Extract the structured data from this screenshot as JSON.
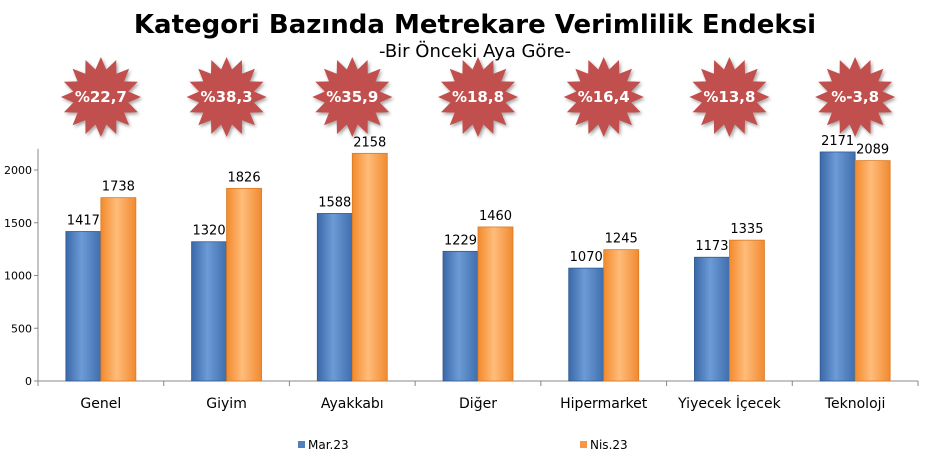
{
  "chart_data": {
    "type": "bar",
    "title": "Kategori Bazında Metrekare Verimlilik Endeksi",
    "subtitle": "-Bir Önceki Aya Göre-",
    "categories": [
      "Genel",
      "Giyim",
      "Ayakkabı",
      "Diğer",
      "Hipermarket",
      "Yiyecek İçecek",
      "Teknoloji"
    ],
    "series": [
      {
        "name": "Mar.23",
        "color": "#4f81bd",
        "values": [
          1417,
          1320,
          1588,
          1229,
          1070,
          1173,
          2171
        ]
      },
      {
        "name": "Nis.23",
        "color": "#f79646",
        "values": [
          1738,
          1826,
          2158,
          1460,
          1245,
          1335,
          2089
        ]
      }
    ],
    "changes": [
      "%22,7",
      "%38,3",
      "%35,9",
      "%18,8",
      "%16,4",
      "%13,8",
      "%-3,8"
    ],
    "badge_color": "#c0504d",
    "ylim": [
      0,
      2200
    ],
    "yticks": [
      0,
      500,
      1000,
      1500,
      2000
    ],
    "xlabel": "",
    "ylabel": "",
    "legend_position": "bottom",
    "grid": false
  }
}
